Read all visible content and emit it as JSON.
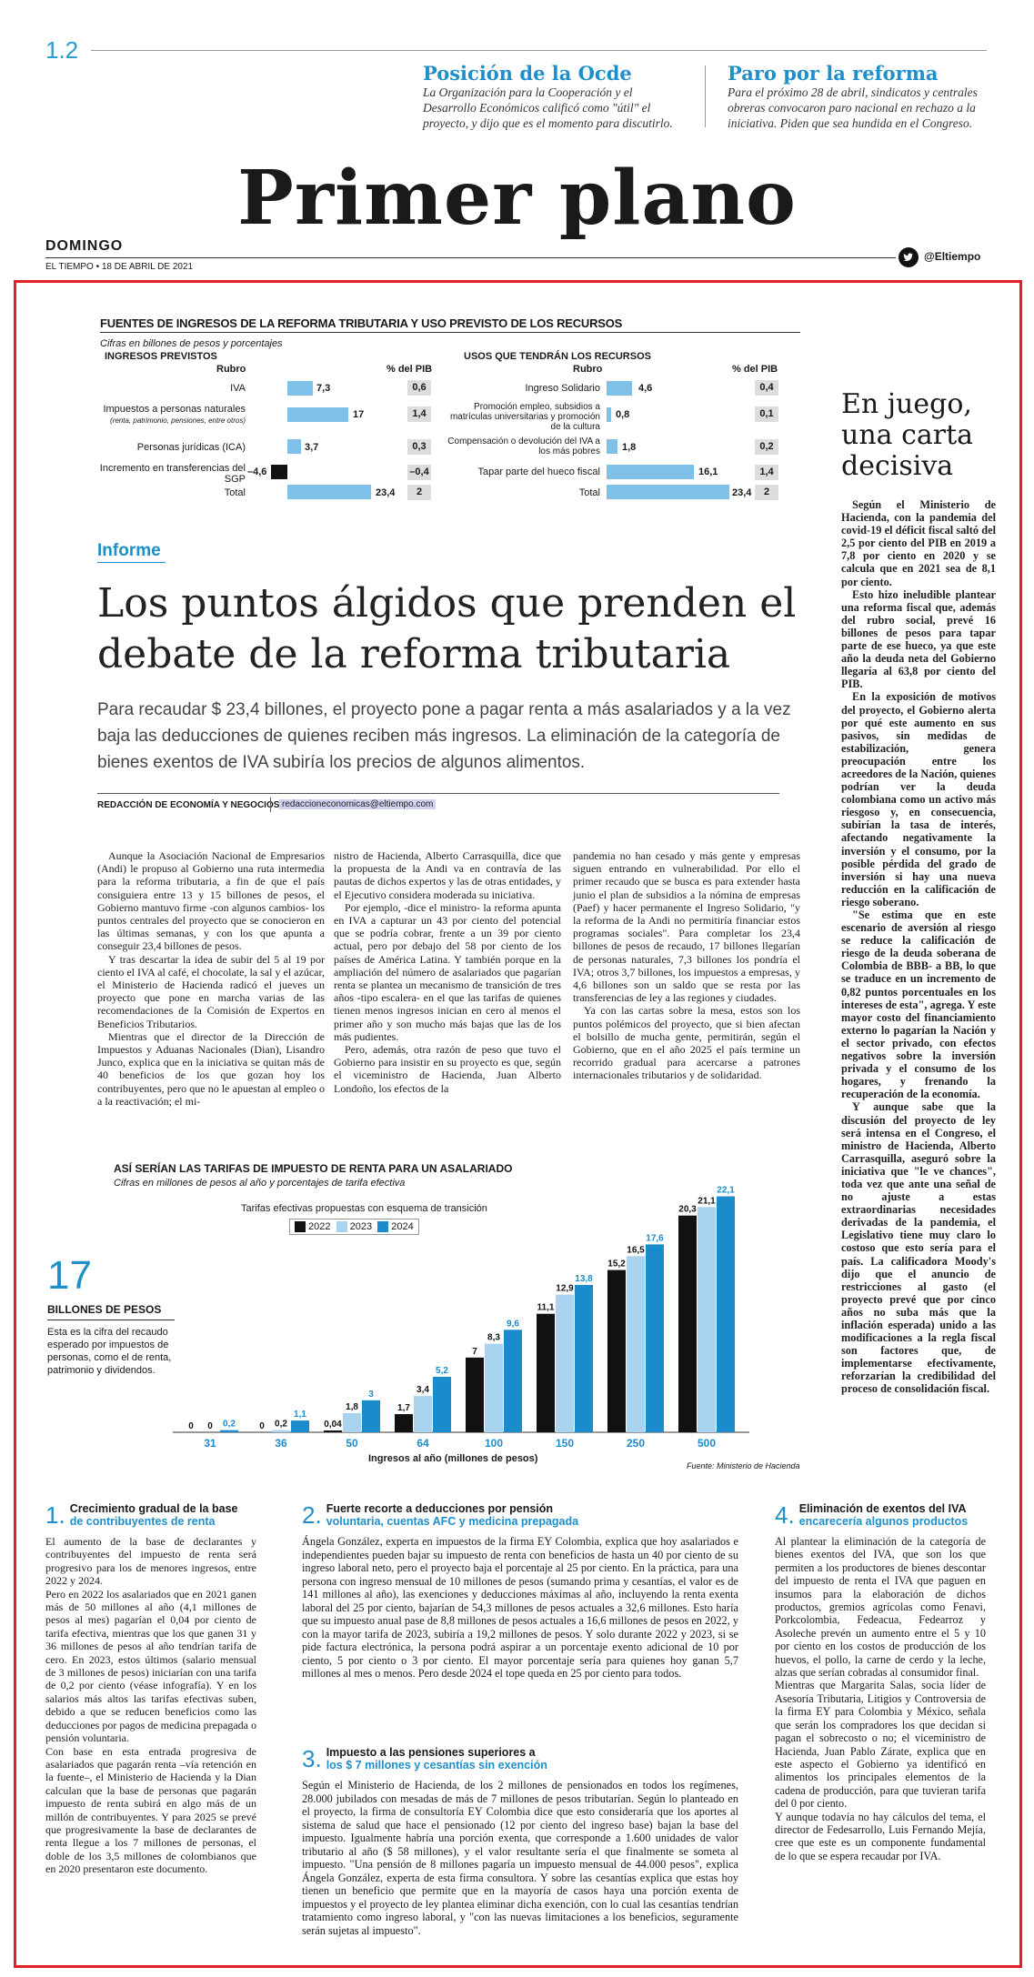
{
  "page": {
    "number": "1.2",
    "section_title": "Primer plano",
    "day": "DOMINGO",
    "dateline": "EL TIEMPO • 18 DE ABRIL DE 2021",
    "twitter_handle": "@Eltiempo",
    "teasers": [
      {
        "title": "Posición de la Ocde",
        "text": "La Organización para la Cooperación y el Desarrollo Económicos calificó como \"útil\" el proyecto, y dijo que es el momento para discutirlo."
      },
      {
        "title": "Paro por la reforma",
        "text": "Para el próximo 28 de abril, sindicatos y centrales obreras convocaron paro nacional en rechazo a la iniciativa. Piden que sea hundida en el Congreso."
      }
    ]
  },
  "revenue_table": {
    "title": "FUENTES DE INGRESOS DE LA REFORMA TRIBUTARIA Y USO PREVISTO DE LOS RECURSOS",
    "subtitle": "Cifras en billones de pesos y porcentajes",
    "left": {
      "heading": "INGRESOS PREVISTOS",
      "col_rubro": "Rubro",
      "col_pib": "% del PIB",
      "rows": [
        {
          "label": "IVA",
          "note": "",
          "value": 7.3,
          "value_text": "7,3",
          "pib": "0,6"
        },
        {
          "label": "Impuestos a personas naturales",
          "note": "(renta, patrimonio, pensiones, entre otros)",
          "value": 17,
          "value_text": "17",
          "pib": "1,4"
        },
        {
          "label": "Personas jurídicas (ICA)",
          "note": "",
          "value": 3.7,
          "value_text": "3,7",
          "pib": "0,3"
        },
        {
          "label": "Incremento en transferencias del SGP",
          "note": "",
          "value": -4.6,
          "value_text": "–4,6",
          "pib": "–0,4"
        },
        {
          "label": "Total",
          "note": "",
          "value": 23.4,
          "value_text": "23,4",
          "pib": "2"
        }
      ]
    },
    "right": {
      "heading": "USOS QUE TENDRÁN LOS RECURSOS",
      "col_rubro": "Rubro",
      "col_pib": "% del PIB",
      "rows": [
        {
          "label": "Ingreso Solidario",
          "value": 4.6,
          "value_text": "4,6",
          "pib": "0,4"
        },
        {
          "label": "Promoción empleo, subsidios a matrículas universitarias y promoción de la cultura",
          "value": 0.8,
          "value_text": "0,8",
          "pib": "0,1"
        },
        {
          "label": "Compensación o devolución del IVA a los más pobres",
          "value": 1.8,
          "value_text": "1,8",
          "pib": "0,2"
        },
        {
          "label": "Tapar parte del hueco fiscal",
          "value": 16.1,
          "value_text": "16,1",
          "pib": "1,4"
        },
        {
          "label": "Total",
          "value": 23.4,
          "value_text": "23,4",
          "pib": "2"
        }
      ]
    }
  },
  "article": {
    "kicker": "Informe",
    "headline": "Los puntos álgidos que prenden el debate de la reforma tributaria",
    "deck": "Para recaudar $ 23,4 billones, el proyecto pone a pagar renta a más asalariados y a la vez baja las deducciones de quienes reciben más ingresos. La eliminación de la categoría de bienes exentos de IVA subiría los precios de algunos alimentos.",
    "byline": "REDACCIÓN DE ECONOMÍA Y NEGOCIOS",
    "email": "redaccioneconomicas@eltiempo.com",
    "col1": [
      "Aunque la Asociación Nacional de Empresarios (Andi) le propuso al Gobierno una ruta intermedia para la reforma tributaria, a fin de que el país consiguiera entre 13 y 15 billones de pesos, el Gobierno mantuvo firme -con algunos cambios- los puntos centrales del proyecto que se conocieron en las últimas semanas, y con los que apunta a conseguir 23,4 billones de pesos.",
      "Y tras descartar la idea de subir del 5 al 19 por ciento el IVA al café, el chocolate, la sal y el azúcar, el Ministerio de Hacienda radicó el jueves un proyecto que pone en marcha varias de las recomendaciones de la Comisión de Expertos en Beneficios Tributarios.",
      "Mientras que el director de la Dirección de Impuestos y Aduanas Nacionales (Dian), Lisandro Junco, explica que en la iniciativa se quitan más de 40 beneficios de los que gozan hoy los contribuyentes, pero que no le apuestan al empleo o a la reactivación; el mi-"
    ],
    "col2": [
      "nistro de Hacienda, Alberto Carrasquilla, dice que la propuesta de la Andi va en contravía de las pautas de dichos expertos y las de otras entidades, y el Ejecutivo considera moderada su iniciativa.",
      "Por ejemplo, -dice el ministro- la reforma apunta en IVA a capturar un 43 por ciento del potencial que se podría cobrar, frente a un 39 por ciento actual, pero por debajo del 58 por ciento de los países de América Latina. Y también porque en la ampliación del número de asalariados que pagarían renta se plantea un mecanismo de transición de tres años -tipo escalera- en el que las tarifas de quienes tienen menos ingresos inician en cero al menos el primer año y son mucho más bajas que las de los más pudientes.",
      "Pero, además, otra razón de peso que tuvo el Gobierno para insistir en su proyecto es que, según el viceministro de Hacienda, Juan Alberto Londoño, los efectos de la"
    ],
    "col3": [
      "pandemia no han cesado y más gente y empresas siguen entrando en vulnerabilidad. Por ello el primer recaudo que se busca es para extender hasta junio el plan de subsidios a la nómina de empresas (Paef) y hacer permanente el Ingreso Solidario, \"y la reforma de la Andi no permitiría financiar estos programas sociales\". Para completar los 23,4 billones de pesos de recaudo, 17 billones llegarían de personas naturales, 7,3 billones los pondría el IVA; otros 3,7 billones, los impuestos a empresas, y 4,6 billones son un saldo que se resta por las transferencias de ley a las regiones y ciudades.",
      "Ya con las cartas sobre la mesa, estos son los puntos polémicos del proyecto, que si bien afectan el bolsillo de mucha gente, permitirán, según el Gobierno, que en el año 2025 el país termine un recorrido gradual para acercarse a patrones internacionales tributarios y de solidaridad."
    ]
  },
  "sidebar": {
    "title": "En juego, una carta decisiva",
    "paragraphs": [
      "Según el Ministerio de Hacienda, con la pandemia del covid-19 el déficit fiscal saltó del 2,5 por ciento del PIB en 2019 a 7,8 por ciento en 2020 y se calcula que en 2021 sea de 8,1 por ciento.",
      "Esto hizo ineludible plantear una reforma fiscal que, además del rubro social, prevé 16 billones de pesos para tapar parte de ese hueco, ya que este año la deuda neta del Gobierno llegaría al 63,8 por ciento del PIB.",
      "En la exposición de motivos del proyecto, el Gobierno alerta por qué este aumento en sus pasivos, sin medidas de estabilización, genera preocupación entre los acreedores de la Nación, quienes podrían ver la deuda colombiana como un activo más riesgoso y, en consecuencia, subirían la tasa de interés, afectando negativamente la inversión y el consumo, por la posible pérdida del grado de inversión si hay una nueva reducción en la calificación de riesgo soberano.",
      "\"Se estima que en este escenario de aversión al riesgo se reduce la calificación de riesgo de la deuda soberana de Colombia de BBB- a BB, lo que se traduce en un incremento de 0,82 puntos porcentuales en los intereses de esta\", agrega. Y este mayor costo del financiamiento externo lo pagarían la Nación y el sector privado, con efectos negativos sobre la inversión privada y el consumo de los hogares, y frenando la recuperación de la economía.",
      "Y aunque sabe que la discusión del proyecto de ley será intensa en el Congreso, el ministro de Hacienda, Alberto Carrasquilla, aseguró sobre la iniciativa que \"le ve chances\", toda vez que ante una señal de no ajuste a estas extraordinarias necesidades derivadas de la pandemia, el Legislativo tiene muy claro lo costoso que esto sería para el país. La calificadora Moody's dijo que el anuncio de restricciones al gasto (el proyecto prevé que por cinco años no suba más que la inflación esperada) unido a las modificaciones a la regla fiscal son factores que, de implementarse efectivamente, reforzarían la credibilidad del proceso de consolidación fiscal."
    ]
  },
  "tax_chart_text": {
    "title": "ASÍ SERÍAN LAS TARIFAS DE IMPUESTO DE RENTA PARA UN ASALARIADO",
    "subtitle": "Cifras en millones de pesos al año y porcentajes de tarifa efectiva",
    "legend_title": "Tarifas efectivas propuestas con esquema de transición",
    "source": "Fuente: Ministerio de Hacienda",
    "xlabel": "Ingresos al año (millones de pesos)",
    "big_number": "17",
    "big_label": "BILLONES DE PESOS",
    "big_desc": "Esta es la cifra del recaudo esperado por impuestos de personas, como el de renta, patrimonio y dividendos."
  },
  "chart_data": {
    "type": "bar",
    "title": "ASÍ SERÍAN LAS TARIFAS DE IMPUESTO DE RENTA PARA UN ASALARIADO",
    "subtitle": "Cifras en millones de pesos al año y porcentajes de tarifa efectiva",
    "xlabel": "Ingresos al año (millones de pesos)",
    "ylabel": "",
    "categories": [
      "31",
      "36",
      "50",
      "64",
      "100",
      "150",
      "250",
      "500"
    ],
    "series": [
      {
        "name": "2022",
        "color": "#111111",
        "values": [
          0,
          0,
          0.04,
          1.7,
          7,
          11.1,
          15.2,
          20.3
        ],
        "labels": [
          "0",
          "0",
          "0,04",
          "1,7",
          "7",
          "11,1",
          "15,2",
          "20,3"
        ]
      },
      {
        "name": "2023",
        "color": "#a8d4f0",
        "values": [
          0,
          0.2,
          1.8,
          3.4,
          8.3,
          12.9,
          16.5,
          21.1
        ],
        "labels": [
          "0",
          "0,2",
          "1,8",
          "3,4",
          "8,3",
          "12,9",
          "16,5",
          "21,1"
        ]
      },
      {
        "name": "2024",
        "color": "#1a8ccc",
        "values": [
          0.2,
          1.1,
          3,
          5.2,
          9.6,
          13.8,
          17.6,
          22.1
        ],
        "labels": [
          "0,2",
          "1,1",
          "3",
          "5,2",
          "9,6",
          "13,8",
          "17,6",
          "22,1"
        ]
      }
    ],
    "ylim": [
      0,
      23
    ],
    "legend": "top-left"
  },
  "boxes": [
    {
      "n": "1.",
      "title": "Crecimiento gradual de la base",
      "subtitle": "de contribuyentes de renta",
      "paragraphs": [
        "El aumento de la base de declarantes y contribuyentes del impuesto de renta será progresivo para los de menores ingresos, entre 2022 y 2024.",
        "Pero en 2022 los asalariados que en 2021 ganen más de 50 millones al año (4,1 millones de pesos al mes) pagarían el 0,04 por ciento de tarifa efectiva, mientras que los que ganen 31 y 36 millones de pesos al año tendrían tarifa de cero. En 2023, estos últimos (salario mensual de 3 millones de pesos) iniciarían con una tarifa de 0,2 por ciento (véase infografía). Y en los salarios más altos las tarifas efectivas suben, debido a que se reducen beneficios como las deducciones por pagos de medicina prepagada o pensión voluntaria.",
        "Con base en esta entrada progresiva de asalariados que pagarán renta –vía retención en la fuente–, el Ministerio de Hacienda y la Dian calculan que la base de personas que pagarán impuesto de renta subirá en algo más de un millón de contribuyentes. Y para 2025 se prevé que progresivamente la base de declarantes de renta llegue a los 7 millones de personas, el doble de los 3,5 millones de colombianos que en 2020 presentaron este documento."
      ]
    },
    {
      "n": "2.",
      "title": "Fuerte recorte a deducciones por pensión",
      "subtitle": "voluntaria, cuentas AFC y medicina prepagada",
      "paragraphs": [
        "Ángela González, experta en impuestos de la firma EY Colombia, explica que hoy asalariados e independientes pueden bajar su impuesto de renta con beneficios de hasta un 40 por ciento de su ingreso laboral neto, pero el proyecto baja el porcentaje al 25 por ciento. En la práctica, para una persona con ingreso mensual de 10 millones de pesos (sumando prima y cesantías, el valor es de 141 millones al año), las exenciones y deducciones máximas al año, incluyendo la renta exenta laboral del 25 por ciento, bajarían de 54,3 millones de pesos actuales a 32,6 millones. Esto haría que su impuesto anual pase de 8,8 millones de pesos actuales a 16,6 millones de pesos en 2022, y con la mayor tarifa de 2023, subiría a 19,2 millones de pesos. Y solo durante 2022 y 2023, si se pide factura electrónica, la persona podrá aspirar a un porcentaje exento adicional de 10 por ciento, 5 por ciento o 3 por ciento. El mayor porcentaje sería para quienes hoy ganan 5,7 millones al mes o menos. Pero desde 2024 el tope queda en 25 por ciento para todos."
      ]
    },
    {
      "n": "3.",
      "title": "Impuesto a las pensiones superiores a",
      "subtitle": "los $ 7 millones y cesantías sin exención",
      "paragraphs": [
        "Según el Ministerio de Hacienda, de los 2 millones de pensionados en todos los regímenes, 28.000 jubilados con mesadas de más de 7 millones de pesos tributarían. Según lo planteado en el proyecto, la firma de consultoría EY Colombia dice que esto consideraría que los aportes al sistema de salud que hace el pensionado (12 por ciento del ingreso base) bajan la base del impuesto. Igualmente habría una porción exenta, que corresponde a 1.600 unidades de valor tributario al año ($ 58 millones), y el valor resultante sería el que finalmente se someta al impuesto. \"Una pensión de 8 millones pagaría un impuesto mensual de 44.000 pesos\", explica Ángela González, experta de esta firma consultora. Y sobre las cesantías explica que estas hoy tienen un beneficio que permite que en la mayoría de casos haya una porción exenta de impuestos y el proyecto de ley plantea eliminar dicha exención, con lo cual las cesantías tendrían tratamiento como ingreso laboral, y \"con las nuevas limitaciones a los beneficios, seguramente serán sujetas al impuesto\"."
      ]
    },
    {
      "n": "4.",
      "title": "Eliminación de exentos del IVA",
      "subtitle": "encarecería algunos productos",
      "paragraphs": [
        "Al plantear la eliminación de la categoría de bienes exentos del IVA, que son los que permiten a los productores de bienes descontar del impuesto de renta el IVA que paguen en insumos para la elaboración de dichos productos, gremios agrícolas como Fenavi, Porkcolombia, Fedeacua, Fedearroz y Asoleche prevén un aumento entre el 5 y 10 por ciento en los costos de producción de los huevos, el pollo, la carne de cerdo y la leche, alzas que serían cobradas al consumidor final.",
        "Mientras que Margarita Salas, socia líder de Asesoría Tributaria, Litigios y Controversia de la firma EY para Colombia y México, señala que serán los compradores los que decidan si pagan el sobrecosto o no; el viceministro de Hacienda, Juan Pablo Zárate, explica que en este aspecto el Gobierno ya identificó en alimentos los principales elementos de la cadena de producción, para que tuvieran tarifa del 0 por ciento.",
        "Y aunque todavía no hay cálculos del tema, el director de Fedesarrollo, Luis Fernando Mejía, cree que este es un componente fundamental de lo que se espera recaudar por IVA."
      ]
    }
  ]
}
